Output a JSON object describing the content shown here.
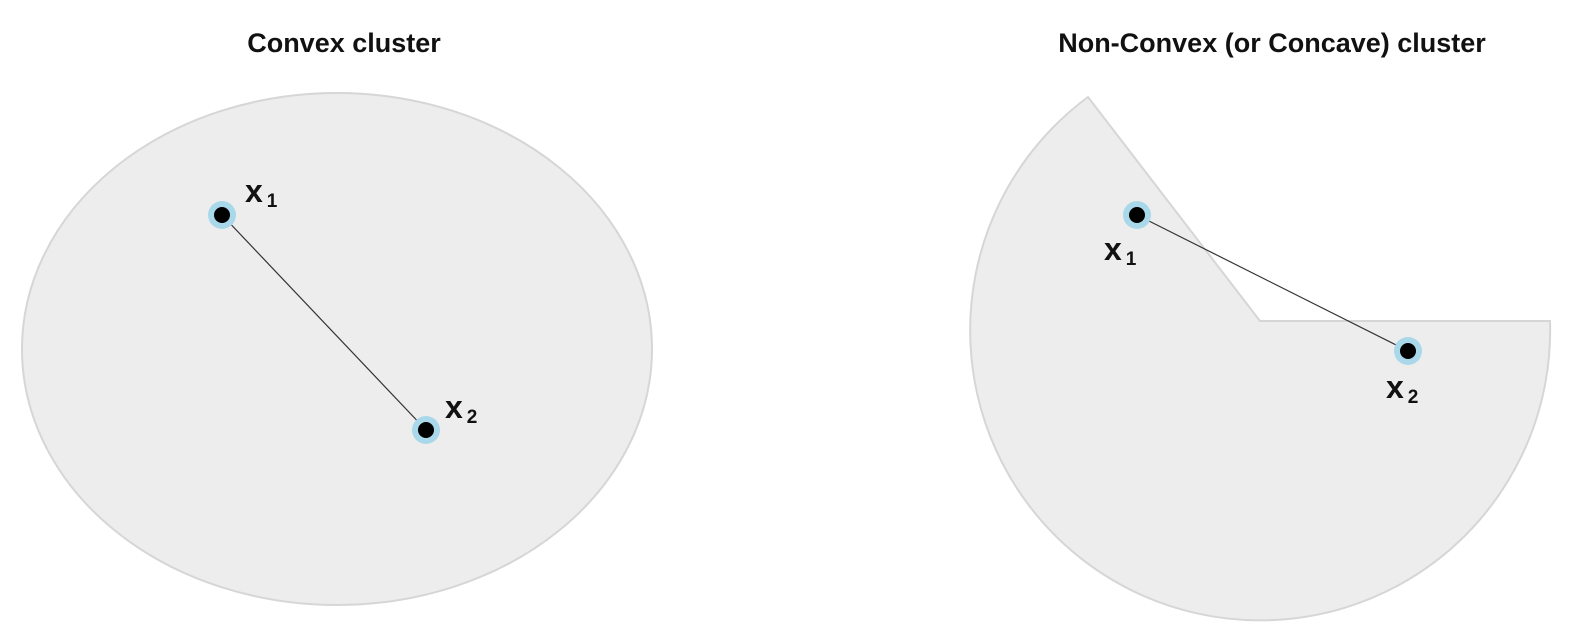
{
  "panels": {
    "convex": {
      "title": "Convex cluster",
      "point1": {
        "label": "x",
        "sub": "1"
      },
      "point2": {
        "label": "x",
        "sub": "2"
      }
    },
    "nonconvex": {
      "title": "Non-Convex (or Concave) cluster",
      "point1": {
        "label": "x",
        "sub": "1"
      },
      "point2": {
        "label": "x",
        "sub": "2"
      }
    }
  },
  "colors": {
    "region_fill": "#ededed",
    "region_stroke": "#d6d6d6",
    "point_halo": "#a9d8ea",
    "point": "#000000"
  }
}
